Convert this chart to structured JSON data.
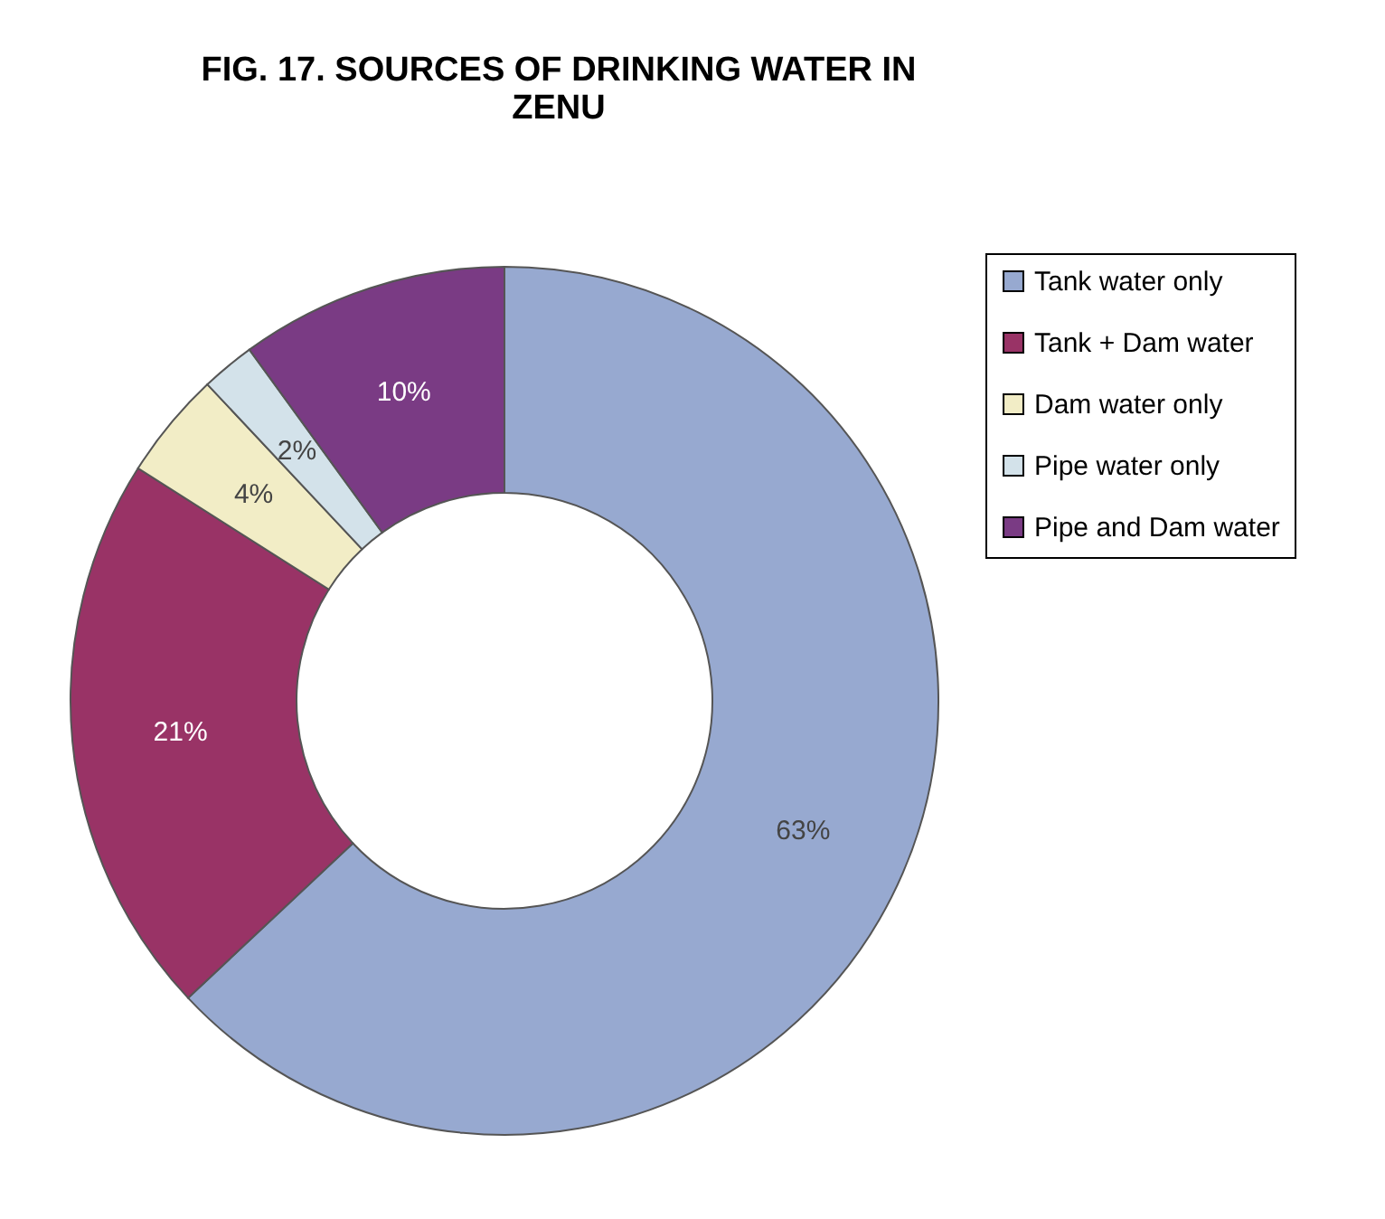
{
  "chart_data": {
    "type": "donut",
    "title": "FIG. 17. SOURCES OF DRINKING WATER IN ZENU",
    "categories": [
      "Tank water only",
      "Tank + Dam water",
      "Dam water only",
      "Pipe water only",
      "Pipe and Dam water"
    ],
    "values": [
      63,
      21,
      4,
      2,
      10
    ],
    "colors": [
      "#97a9d0",
      "#993366",
      "#f2edc6",
      "#d3e2ea",
      "#7a3b84"
    ],
    "value_labels": [
      "63%",
      "21%",
      "4%",
      "2%",
      "10%"
    ],
    "legend": "right"
  }
}
